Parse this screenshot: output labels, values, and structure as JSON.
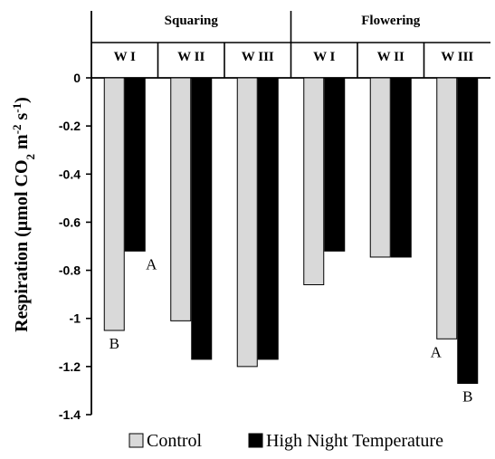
{
  "chart_data": {
    "type": "bar",
    "groups": [
      {
        "label": "Squaring",
        "categories": [
          "W I",
          "W II",
          "W III"
        ]
      },
      {
        "label": "Flowering",
        "categories": [
          "W I",
          "W II",
          "W III"
        ]
      }
    ],
    "categories": [
      "W I",
      "W II",
      "W III",
      "W I",
      "W II",
      "W III"
    ],
    "series": [
      {
        "name": "Control",
        "color": "#d9d9d9",
        "values": [
          -1.05,
          -1.01,
          -1.2,
          -0.86,
          -0.745,
          -1.085
        ]
      },
      {
        "name": "High Night Temperature",
        "color": "#000000",
        "values": [
          -0.72,
          -1.17,
          -1.17,
          -0.72,
          -0.745,
          -1.27
        ]
      }
    ],
    "annotations": [
      {
        "category_index": 0,
        "series": "Control",
        "text": "B"
      },
      {
        "category_index": 0,
        "series": "High Night Temperature",
        "text": "A"
      },
      {
        "category_index": 5,
        "series": "Control",
        "text": "A"
      },
      {
        "category_index": 5,
        "series": "High Night Temperature",
        "text": "B"
      }
    ],
    "ylabel": "Respiration (µmol CO₂ m⁻² s⁻¹)",
    "ylabel_parts": {
      "pre": "Respiration (µmol CO",
      "sub": "2",
      "mid": " m",
      "sup1": "-2",
      "mid2": " s",
      "sup2": "-1",
      "post": ")"
    },
    "ylim": [
      -1.4,
      0
    ],
    "yticks": [
      0,
      -0.2,
      -0.4,
      -0.6,
      -0.8,
      -1,
      -1.2,
      -1.4
    ],
    "ytick_labels": [
      "0",
      "-0.2",
      "-0.4",
      "-0.6",
      "-0.8",
      "-1",
      "-1.2",
      "-1.4"
    ],
    "grid": false,
    "legend": {
      "position": "bottom",
      "entries": [
        "Control",
        "High Night Temperature"
      ]
    }
  }
}
